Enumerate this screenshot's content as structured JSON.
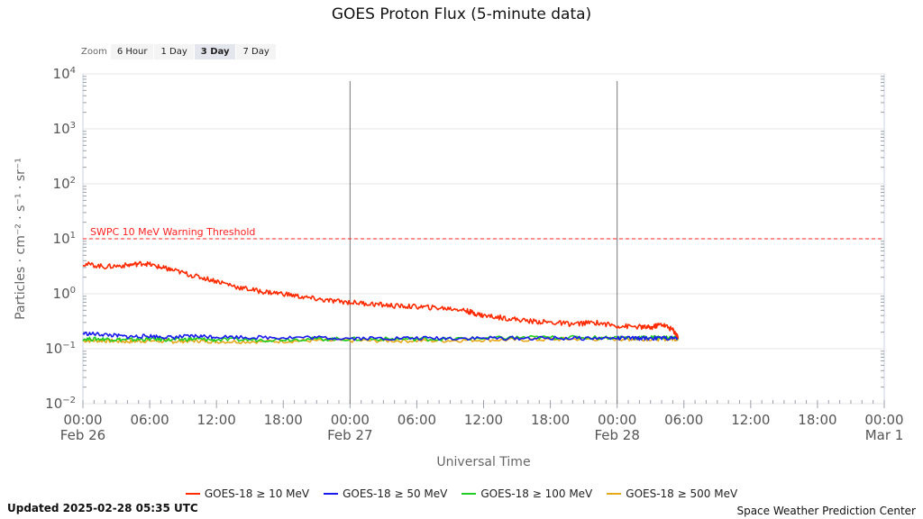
{
  "title": "GOES Proton Flux (5-minute data)",
  "zoom": {
    "label": "Zoom",
    "options": [
      "6 Hour",
      "1 Day",
      "3 Day",
      "7 Day"
    ],
    "selected": "3 Day"
  },
  "footer": {
    "updated": "Updated 2025-02-28 05:35 UTC",
    "credit": "Space Weather Prediction Center"
  },
  "chart_data": {
    "type": "line",
    "title": "GOES Proton Flux (5-minute data)",
    "xlabel": "Universal Time",
    "ylabel": "Particles · cm⁻² · s⁻¹ · sr⁻¹",
    "y_scale": "log",
    "ylim_exp": [
      -2,
      4
    ],
    "y_ticks": [
      {
        "exp": 4,
        "base": "10",
        "sup": "4"
      },
      {
        "exp": 3,
        "base": "10",
        "sup": "3"
      },
      {
        "exp": 2,
        "base": "10",
        "sup": "2"
      },
      {
        "exp": 1,
        "base": "10",
        "sup": "1"
      },
      {
        "exp": 0,
        "base": "10",
        "sup": "0"
      },
      {
        "exp": -1,
        "base": "10",
        "sup": "−1"
      },
      {
        "exp": -2,
        "base": "10",
        "sup": "−2"
      }
    ],
    "x_range_hours": [
      0,
      72
    ],
    "x_ticks": [
      {
        "h": 0,
        "time": "00:00",
        "date": "Feb 26"
      },
      {
        "h": 6,
        "time": "06:00",
        "date": ""
      },
      {
        "h": 12,
        "time": "12:00",
        "date": ""
      },
      {
        "h": 18,
        "time": "18:00",
        "date": ""
      },
      {
        "h": 24,
        "time": "00:00",
        "date": "Feb 27"
      },
      {
        "h": 30,
        "time": "06:00",
        "date": ""
      },
      {
        "h": 36,
        "time": "12:00",
        "date": ""
      },
      {
        "h": 42,
        "time": "18:00",
        "date": ""
      },
      {
        "h": 48,
        "time": "00:00",
        "date": "Feb 28"
      },
      {
        "h": 54,
        "time": "06:00",
        "date": ""
      },
      {
        "h": 60,
        "time": "12:00",
        "date": ""
      },
      {
        "h": 66,
        "time": "18:00",
        "date": ""
      },
      {
        "h": 72,
        "time": "00:00",
        "date": "Mar 1"
      }
    ],
    "day_lines_hours": [
      24,
      48
    ],
    "threshold": {
      "label": "SWPC 10 MeV Warning Threshold",
      "value": 10,
      "color": "#ff2020"
    },
    "grid": true,
    "legend_position": "bottom",
    "series": [
      {
        "name": "GOES-18 ≥ 10 MeV",
        "color": "#ff2a00",
        "x": [
          0,
          2,
          4,
          5.5,
          7,
          8,
          10,
          12,
          14,
          16,
          18,
          20,
          22,
          24,
          26,
          28,
          30,
          32,
          34,
          35,
          36,
          38,
          40,
          42,
          44,
          46,
          48,
          50,
          51,
          52,
          53,
          53.5
        ],
        "y": [
          3.5,
          3.1,
          3.3,
          3.6,
          3.0,
          2.7,
          2.1,
          1.7,
          1.3,
          1.1,
          1.0,
          0.85,
          0.75,
          0.7,
          0.65,
          0.6,
          0.58,
          0.55,
          0.52,
          0.45,
          0.4,
          0.36,
          0.32,
          0.3,
          0.28,
          0.3,
          0.26,
          0.25,
          0.24,
          0.28,
          0.22,
          0.16
        ]
      },
      {
        "name": "GOES-18 ≥ 50 MeV",
        "color": "#1a1aee",
        "x": [
          0,
          2,
          4,
          6,
          8,
          10,
          12,
          16,
          20,
          24,
          28,
          32,
          36,
          40,
          44,
          48,
          50,
          52,
          53.5
        ],
        "y": [
          0.19,
          0.18,
          0.165,
          0.17,
          0.16,
          0.17,
          0.165,
          0.16,
          0.16,
          0.155,
          0.155,
          0.155,
          0.155,
          0.155,
          0.155,
          0.155,
          0.155,
          0.155,
          0.155
        ]
      },
      {
        "name": "GOES-18 ≥ 100 MeV",
        "color": "#22cc22",
        "x": [
          0,
          2,
          4,
          6,
          8,
          10,
          12,
          16,
          20,
          24,
          28,
          32,
          36,
          40,
          44,
          48,
          50,
          52,
          53.5
        ],
        "y": [
          0.15,
          0.15,
          0.145,
          0.15,
          0.145,
          0.15,
          0.145,
          0.145,
          0.15,
          0.15,
          0.15,
          0.15,
          0.155,
          0.16,
          0.16,
          0.16,
          0.16,
          0.16,
          0.16
        ]
      },
      {
        "name": "GOES-18 ≥ 500 MeV",
        "color": "#e6a817",
        "x": [
          0,
          2,
          4,
          6,
          8,
          10,
          12,
          16,
          20,
          24,
          28,
          32,
          36,
          40,
          44,
          48,
          50,
          52,
          53.5
        ],
        "y": [
          0.14,
          0.14,
          0.135,
          0.14,
          0.135,
          0.14,
          0.135,
          0.135,
          0.14,
          0.14,
          0.14,
          0.14,
          0.145,
          0.145,
          0.15,
          0.15,
          0.15,
          0.15,
          0.15
        ]
      }
    ]
  }
}
